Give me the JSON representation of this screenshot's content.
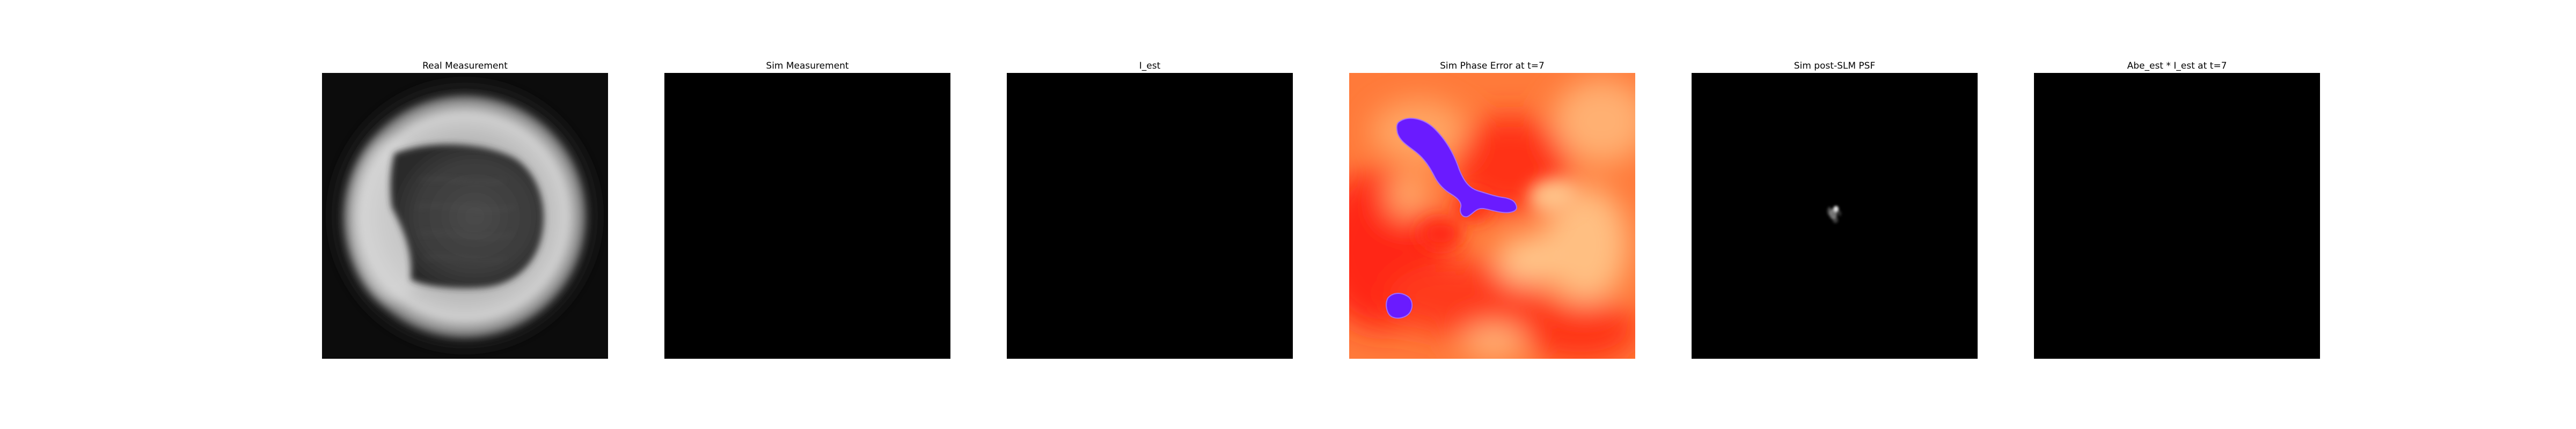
{
  "figure": {
    "panels": [
      {
        "title": "Real Measurement"
      },
      {
        "title": "Sim Measurement"
      },
      {
        "title": "I_est"
      },
      {
        "title": "Sim Phase Error at t=7"
      },
      {
        "title": "Sim post-SLM PSF"
      },
      {
        "title": "Abe_est * I_est at t=7"
      }
    ],
    "colormaps": {
      "grayscale": "gray",
      "phase": "autumn-like (red to yellow) with blue/purple low region"
    },
    "colors": {
      "background": "#ffffff",
      "image_black": "#000000",
      "phase_red": "#ff2a14",
      "phase_orange": "#ff8a3c",
      "phase_yellow": "#ffc98a",
      "phase_purple": "#6a1bff"
    }
  }
}
